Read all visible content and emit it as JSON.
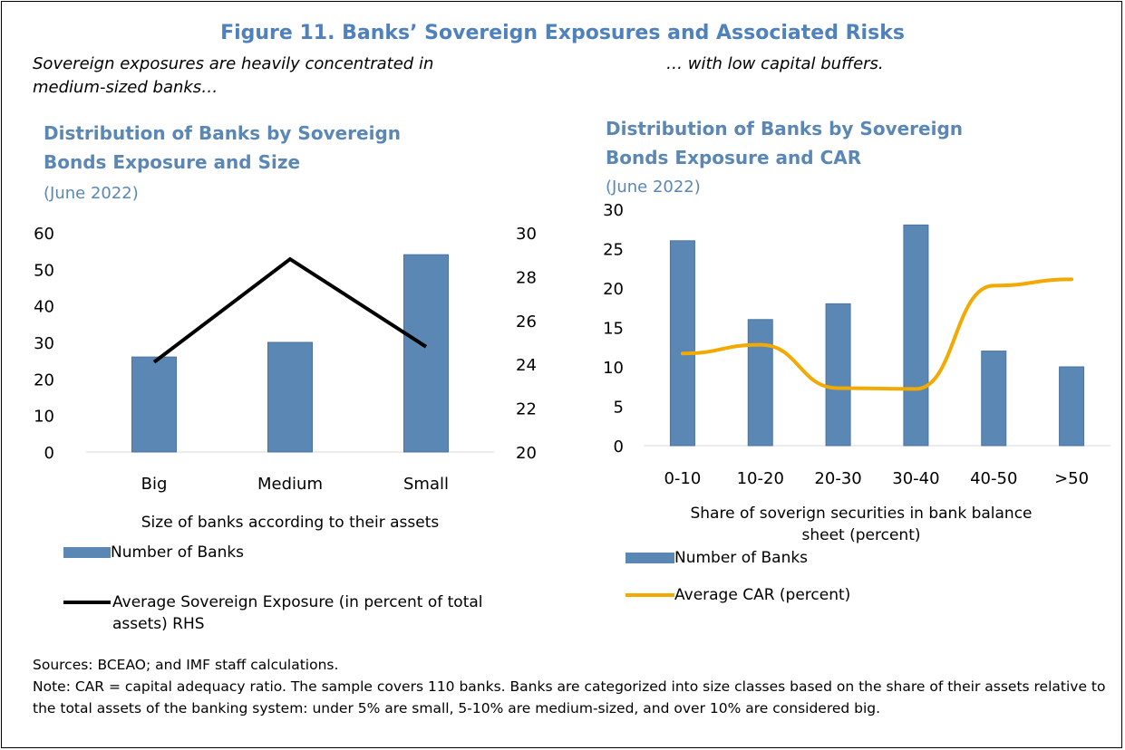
{
  "figure": {
    "title": "Figure 11. Banks’ Sovereign Exposures and Associated Risks",
    "left_subtitle": "Sovereign exposures are heavily concentrated in medium-sized banks…",
    "right_subtitle": "… with low capital buffers.",
    "sources": "Sources: BCEAO; and IMF staff calculations.",
    "note": "Note: CAR = capital adequacy ratio. The sample covers 110 banks. Banks are categorized into size classes based on the share of their assets relative to the total assets of the banking system: under 5% are small, 5-10% are medium-sized, and over 10% are considered big."
  },
  "colors": {
    "bar": "#5b87b5",
    "line_left": "#000000",
    "line_right": "#f2a900",
    "title": "#5b87b5"
  },
  "chart_data": [
    {
      "type": "bar",
      "title": "Distribution of Banks by Sovereign Bonds Exposure and Size",
      "subtitle": "(June 2022)",
      "categories": [
        "Big",
        "Medium",
        "Small"
      ],
      "xlabel": "Size of banks according to their assets",
      "ylim": [
        0,
        60
      ],
      "yticks": [
        "0",
        "10",
        "20",
        "30",
        "40",
        "50",
        "60"
      ],
      "y2lim": [
        20,
        30
      ],
      "y2ticks": [
        "20",
        "22",
        "24",
        "26",
        "28",
        "30"
      ],
      "series": [
        {
          "name": "Number of Banks",
          "type": "bar",
          "axis": "left",
          "values": [
            26,
            30,
            54
          ]
        },
        {
          "name": "Average Sovereign Exposure (in percent of total assets) RHS",
          "type": "line",
          "axis": "right",
          "values": [
            24.1,
            28.8,
            24.8
          ]
        }
      ],
      "grid": false,
      "legend_position": "bottom"
    },
    {
      "type": "bar",
      "title": "Distribution of Banks by Sovereign Bonds Exposure and CAR",
      "subtitle": "(June 2022)",
      "categories": [
        "0-10",
        "10-20",
        "20-30",
        "30-40",
        "40-50",
        ">50"
      ],
      "xlabel": "Share of soverign securities in bank balance sheet (percent)",
      "ylim": [
        0,
        30
      ],
      "yticks": [
        "0",
        "5",
        "10",
        "15",
        "20",
        "25",
        "30"
      ],
      "series": [
        {
          "name": "Number of Banks",
          "type": "bar",
          "values": [
            26,
            16,
            18,
            28,
            12,
            10
          ]
        },
        {
          "name": "Average CAR (percent)",
          "type": "line",
          "values": [
            11.7,
            12.8,
            7.3,
            7.2,
            20.3,
            21.1
          ]
        }
      ],
      "grid": false,
      "legend_position": "bottom"
    }
  ]
}
